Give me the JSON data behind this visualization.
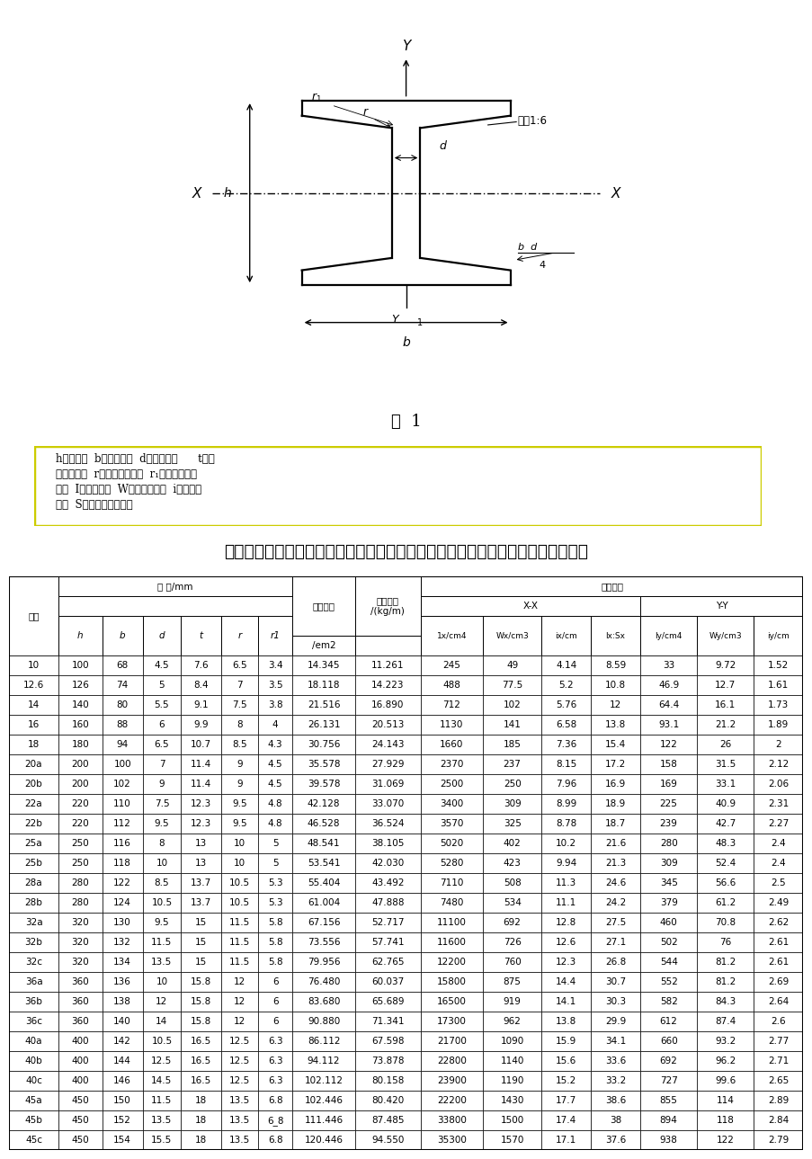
{
  "title": "工字钢的型号、截面尺寸、重量、截面惯性矩、截面抵抗矩等各项力学参数统计表",
  "figure_caption": "图  1",
  "desc_line1": "h－高度；  b－腿宽度；  d－腰厚度；      t－平",
  "desc_line2": "均腿厚度；  r－内圆弧半径；  r₁－腿端圆弧半",
  "desc_line3": "径；  I－惯性矩；  W－截面系数；  i－惯性半",
  "desc_line4": "径；  S－半截面的静力矩",
  "table_data": [
    [
      "10",
      100,
      68,
      4.5,
      7.6,
      6.5,
      3.4,
      14.345,
      11.261,
      245,
      49,
      4.14,
      8.59,
      33.0,
      9.72,
      1.52
    ],
    [
      "12.6",
      126,
      74,
      5.0,
      8.4,
      7.0,
      3.5,
      18.118,
      14.223,
      488,
      77.5,
      5.2,
      10.8,
      46.9,
      12.7,
      1.61
    ],
    [
      "14",
      140,
      80,
      5.5,
      9.1,
      7.5,
      3.8,
      21.516,
      16.89,
      712,
      102,
      5.76,
      12.0,
      64.4,
      16.1,
      1.73
    ],
    [
      "16",
      160,
      88,
      6.0,
      9.9,
      8.0,
      4.0,
      26.131,
      20.513,
      1130,
      141,
      6.58,
      13.8,
      93.1,
      21.2,
      1.89
    ],
    [
      "18",
      180,
      94,
      6.5,
      10.7,
      8.5,
      4.3,
      30.756,
      24.143,
      1660,
      185,
      7.36,
      15.4,
      122,
      26.0,
      2.0
    ],
    [
      "20a",
      200,
      100,
      7.0,
      11.4,
      9.0,
      4.5,
      35.578,
      27.929,
      2370,
      237,
      8.15,
      17.2,
      158,
      31.5,
      2.12
    ],
    [
      "20b",
      200,
      102,
      9.0,
      11.4,
      9.0,
      4.5,
      39.578,
      31.069,
      2500,
      250,
      7.96,
      16.9,
      169,
      33.1,
      2.06
    ],
    [
      "22a",
      220,
      110,
      7.5,
      12.3,
      9.5,
      4.8,
      42.128,
      33.07,
      3400,
      309,
      8.99,
      18.9,
      225,
      40.9,
      2.31
    ],
    [
      "22b",
      220,
      112,
      9.5,
      12.3,
      9.5,
      4.8,
      46.528,
      36.524,
      3570,
      325,
      8.78,
      18.7,
      239,
      42.7,
      2.27
    ],
    [
      "25a",
      250,
      116,
      8.0,
      13.0,
      10.0,
      5.0,
      48.541,
      38.105,
      5020,
      402,
      10.2,
      21.6,
      280,
      48.3,
      2.4
    ],
    [
      "25b",
      250,
      118,
      10.0,
      13.0,
      10.0,
      5.0,
      53.541,
      42.03,
      5280,
      423,
      9.94,
      21.3,
      309,
      52.4,
      2.4
    ],
    [
      "28a",
      280,
      122,
      8.5,
      13.7,
      10.5,
      5.3,
      55.404,
      43.492,
      7110,
      508,
      11.3,
      24.6,
      345,
      56.6,
      2.5
    ],
    [
      "28b",
      280,
      124,
      10.5,
      13.7,
      10.5,
      5.3,
      61.004,
      47.888,
      7480,
      534,
      11.1,
      24.2,
      379,
      61.2,
      2.49
    ],
    [
      "32a",
      320,
      130,
      9.5,
      15.0,
      11.5,
      5.8,
      67.156,
      52.717,
      11100,
      692,
      12.8,
      27.5,
      460,
      70.8,
      2.62
    ],
    [
      "32b",
      320,
      132,
      11.5,
      15.0,
      11.5,
      5.8,
      73.556,
      57.741,
      11600,
      726,
      12.6,
      27.1,
      502,
      76.0,
      2.61
    ],
    [
      "32c",
      320,
      134,
      13.5,
      15.0,
      11.5,
      5.8,
      79.956,
      62.765,
      12200,
      760,
      12.3,
      26.8,
      544,
      81.2,
      2.61
    ],
    [
      "36a",
      360,
      136,
      10.0,
      15.8,
      12.0,
      6.0,
      76.48,
      60.037,
      15800,
      875,
      14.4,
      30.7,
      552,
      81.2,
      2.69
    ],
    [
      "36b",
      360,
      138,
      12.0,
      15.8,
      12.0,
      6.0,
      83.68,
      65.689,
      16500,
      919,
      14.1,
      30.3,
      582,
      84.3,
      2.64
    ],
    [
      "36c",
      360,
      140,
      14.0,
      15.8,
      12.0,
      6.0,
      90.88,
      71.341,
      17300,
      962,
      13.8,
      29.9,
      612,
      87.4,
      2.6
    ],
    [
      "40a",
      400,
      142,
      10.5,
      16.5,
      12.5,
      6.3,
      86.112,
      67.598,
      21700,
      1090,
      15.9,
      34.1,
      660,
      93.2,
      2.77
    ],
    [
      "40b",
      400,
      144,
      12.5,
      16.5,
      12.5,
      6.3,
      94.112,
      73.878,
      22800,
      1140,
      15.6,
      33.6,
      692,
      96.2,
      2.71
    ],
    [
      "40c",
      400,
      146,
      14.5,
      16.5,
      12.5,
      6.3,
      102.112,
      80.158,
      23900,
      1190,
      15.2,
      33.2,
      727,
      99.6,
      2.65
    ],
    [
      "45a",
      450,
      150,
      11.5,
      18.0,
      13.5,
      6.8,
      102.446,
      80.42,
      22200,
      1430,
      17.7,
      38.6,
      855,
      114,
      2.89
    ],
    [
      "45b",
      450,
      152,
      13.5,
      18.0,
      13.5,
      "6_8",
      111.446,
      87.485,
      33800,
      1500,
      17.4,
      38.0,
      894,
      118,
      2.84
    ],
    [
      "45c",
      450,
      154,
      15.5,
      18.0,
      13.5,
      6.8,
      120.446,
      94.55,
      35300,
      1570,
      17.1,
      37.6,
      938,
      122,
      2.79
    ]
  ],
  "bg_color": "#ffffff",
  "border_color": "#000000"
}
